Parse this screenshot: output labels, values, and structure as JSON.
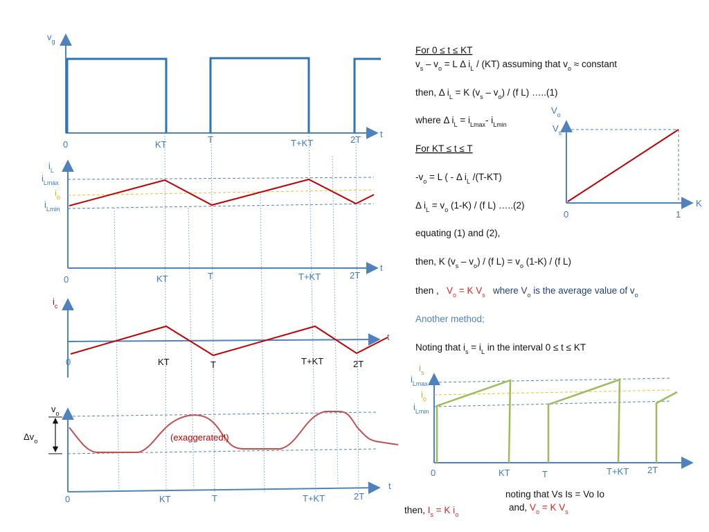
{
  "plot_vg": {
    "ylabel": "v",
    "ylabel_sub": "g",
    "x_axis": "t",
    "ticks": [
      "0",
      "KT",
      "T",
      "T+KT",
      "2T"
    ]
  },
  "plot_il": {
    "ylabel": "i",
    "ylabel_sub": "L",
    "imax": "i",
    "imax_sub": "Lmax",
    "io": "i",
    "io_sub": "o",
    "imin": "i",
    "imin_sub": "Lmin",
    "x_axis": "t",
    "ticks": [
      "0",
      "KT",
      "T",
      "T+KT",
      "2T"
    ]
  },
  "plot_ic": {
    "ylabel": "i",
    "ylabel_sub": "c",
    "x_axis": "t",
    "ticks": [
      "0",
      "KT",
      "T",
      "T+KT",
      "2T"
    ]
  },
  "plot_vo": {
    "ylabel": "v",
    "ylabel_sub": "o",
    "delta": "Δv",
    "delta_sub": "o",
    "note": "(exaggerated!)",
    "x_axis": "t",
    "ticks": [
      "0",
      "KT",
      "T",
      "T+KT",
      "2T"
    ]
  },
  "plot_transfer": {
    "ylabel": "V",
    "ylabel_sub": "o",
    "vs": "V",
    "vs_sub": "s",
    "x_axis": "K",
    "x0": "0",
    "x1": "1"
  },
  "plot_is": {
    "ylabel": "i",
    "ylabel_sub": "s",
    "imax": "i",
    "imax_sub": "Lmax",
    "io": "i",
    "io_sub": "o",
    "imin": "i",
    "imin_sub": "Lmin",
    "ticks": [
      "0",
      "KT",
      "T",
      "T+KT",
      "2T"
    ]
  },
  "eq": {
    "h1": "For 0 ≤ t ≤ KT",
    "l1a": "v",
    "l1a_s": "s",
    "l1b": " – v",
    "l1b_s": "o",
    "l1c": " = L Δ i",
    "l1c_s": "L",
    "l1d": " / (KT)    assuming that v",
    "l1d_s": "o",
    "l1e": " ≈ constant",
    "l2a": "then, Δ i",
    "l2a_s": "L",
    "l2b": " = K (v",
    "l2b_s": "s",
    "l2c": " – v",
    "l2c_s": "o",
    "l2d": ") / (f L)   …..(1)",
    "l3a": "where Δ i",
    "l3a_s": "L",
    "l3b": " = i",
    "l3b_s": "Lmax",
    "l3c": "- i",
    "l3c_s": "Lmin",
    "h2": "For KT ≤ t ≤ T",
    "l4a": "-v",
    "l4a_s": "o",
    "l4b": " = L ( - Δ i",
    "l4b_s": "L",
    "l4c": " /(T-KT)",
    "l5a": "Δ i",
    "l5a_s": "L",
    "l5b": " = v",
    "l5b_s": "o",
    "l5c": " (1-K) / (f L) …..(2)",
    "l6": "equating (1) and (2),",
    "l7a": "then,  K (v",
    "l7a_s": "s",
    "l7b": " – v",
    "l7b_s": "o",
    "l7c": ") / (f L)  = v",
    "l7c_s": "o",
    "l7d": " (1-K) / (f L)",
    "l8a": "then ,   ",
    "l8b": "V",
    "l8b_s": "o",
    "l8c": " = K V",
    "l8c_s": "s",
    "l8d": "   where V",
    "l8d_s": "o",
    "l8e": " is the average value of v",
    "l8e_s": "o",
    "l9": "Another method;",
    "l10a": "Noting that i",
    "l10a_s": "s",
    "l10b": " = i",
    "l10b_s": "L",
    "l10c": " in the interval 0 ≤ t ≤ KT",
    "l11": "noting  that Vs Is = Vo Io",
    "l12a": "then, ",
    "l12b": "I",
    "l12b_s": "s",
    "l12c": " = K i",
    "l12c_s": "o",
    "l13a": "and, ",
    "l13b": "V",
    "l13b_s": "o",
    "l13c": " = K V",
    "l13c_s": "s"
  }
}
